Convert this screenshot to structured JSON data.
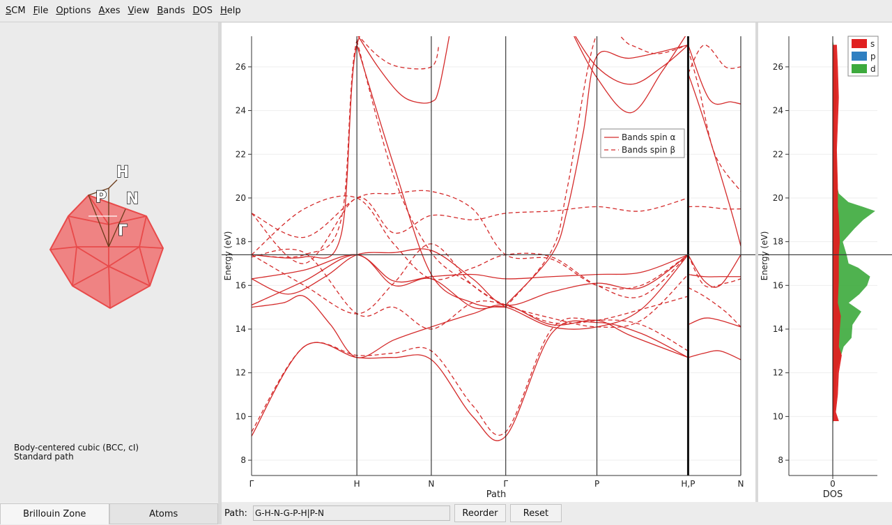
{
  "menu": [
    "SCM",
    "File",
    "Options",
    "Axes",
    "View",
    "Bands",
    "DOS",
    "Help"
  ],
  "brillouin_zone": {
    "points": [
      "H",
      "P",
      "N",
      "Γ"
    ],
    "face_color": "#f07878",
    "edge_color": "#e84a4a"
  },
  "lattice_info": {
    "line1": "Body-centered cubic (BCC, cI)",
    "line2": "Standard path"
  },
  "tabs": [
    {
      "label": "Brillouin Zone",
      "active": true
    },
    {
      "label": "Atoms",
      "active": false
    }
  ],
  "path_bar": {
    "label": "Path:",
    "value": "G-H-N-G-P-H|P-N",
    "reorder_label": "Reorder",
    "reset_label": "Reset"
  },
  "colors": {
    "band": "#d42a2a",
    "fermi": "#333333",
    "dos_s": "#e02020",
    "dos_p": "#2f7fc1",
    "dos_d": "#3daa3d"
  },
  "chart_data": [
    {
      "type": "line",
      "title": "",
      "xlabel": "Path",
      "ylabel": "Energy (eV)",
      "ylim": [
        7.3,
        27.4
      ],
      "yticks": [
        8,
        10,
        12,
        14,
        16,
        18,
        20,
        22,
        24,
        26
      ],
      "fermi_level": 17.4,
      "kpoints": [
        {
          "label": "Γ",
          "x": 0.0
        },
        {
          "label": "H",
          "x": 1.0
        },
        {
          "label": "N",
          "x": 1.707
        },
        {
          "label": "Γ",
          "x": 2.414
        },
        {
          "label": "P",
          "x": 3.28
        },
        {
          "label": "H,P",
          "x": 4.146
        },
        {
          "label": "N",
          "x": 4.646
        }
      ],
      "legend": {
        "placement": "upper-right",
        "entries": [
          "Bands spin α",
          "Bands spin β"
        ]
      },
      "series": [
        {
          "name": "Bands spin α",
          "style": "solid",
          "bands": [
            {
              "x": [
                0,
                0.5,
                1,
                1.35,
                1.707,
                2.1,
                2.414,
                2.85,
                3.28,
                3.7,
                4.146
              ],
              "y": [
                9.1,
                13.2,
                12.7,
                12.7,
                12.6,
                10.0,
                9.1,
                13.8,
                14.3,
                13.8,
                12.7
              ]
            },
            {
              "x": [
                0,
                0.3,
                0.5,
                0.75,
                1,
                1.35,
                1.707,
                2.1,
                2.414,
                2.85,
                3.28,
                3.6,
                4.146
              ],
              "y": [
                15.0,
                15.2,
                15.5,
                14.2,
                12.7,
                13.5,
                14.1,
                14.7,
                15.1,
                14.2,
                14.4,
                13.7,
                12.7
              ]
            },
            {
              "x": [
                0,
                0.5,
                1,
                1.35,
                1.707,
                2.1,
                2.414,
                2.85,
                3.28,
                3.7,
                4.146
              ],
              "y": [
                15.1,
                16.2,
                17.4,
                16.0,
                16.3,
                15.0,
                15.0,
                14.1,
                14.1,
                14.9,
                17.4
              ]
            },
            {
              "x": [
                0,
                0.35,
                0.7,
                1,
                1.35,
                1.707,
                2.1,
                2.414,
                2.85,
                3.28,
                3.7,
                4.146
              ],
              "y": [
                16.3,
                15.6,
                16.4,
                17.4,
                17.5,
                17.6,
                16.3,
                15.1,
                15.7,
                16.1,
                15.9,
                17.4
              ]
            },
            {
              "x": [
                0,
                0.5,
                1,
                1.35,
                1.707,
                2.1,
                2.414,
                2.85,
                3.28,
                3.7,
                4.146
              ],
              "y": [
                16.3,
                16.7,
                17.4,
                16.2,
                16.4,
                16.5,
                16.3,
                16.4,
                16.5,
                16.6,
                17.4
              ]
            },
            {
              "x": [
                0,
                0.5,
                0.85,
                1,
                1.35,
                1.707,
                2.1,
                2.414
              ],
              "y": [
                17.4,
                17.3,
                18.3,
                27.0,
                27.8,
                28.0,
                27.8,
                27.5
              ]
            },
            {
              "x": [
                1,
                1.35,
                1.707,
                2.1,
                2.414
              ],
              "y": [
                27.0,
                21.5,
                16.5,
                15.2,
                15.0
              ]
            },
            {
              "x": [
                1.0,
                1.2,
                1.4,
                1.55,
                1.707,
                1.78,
                1.9
              ],
              "y": [
                27.5,
                26.0,
                24.8,
                24.4,
                24.4,
                25.0,
                28.0
              ]
            },
            {
              "x": [
                2.414,
                2.85,
                3.0,
                3.15,
                3.28,
                3.6,
                4.146
              ],
              "y": [
                15.1,
                17.4,
                19.5,
                23.0,
                26.5,
                26.4,
                27.0
              ]
            },
            {
              "x": [
                3.0,
                3.28,
                3.6,
                3.9,
                4.146
              ],
              "y": [
                28.0,
                26.0,
                25.2,
                26.0,
                27.0
              ]
            },
            {
              "x": [
                3.0,
                3.28,
                3.6,
                3.9,
                4.146
              ],
              "y": [
                28.0,
                25.5,
                23.9,
                25.8,
                27.6
              ]
            },
            {
              "x": [
                4.146,
                4.3,
                4.45,
                4.646
              ],
              "y": [
                12.7,
                12.9,
                13.0,
                12.6
              ]
            },
            {
              "x": [
                4.146,
                4.3,
                4.45,
                4.646
              ],
              "y": [
                14.2,
                14.5,
                14.4,
                14.1
              ]
            },
            {
              "x": [
                4.146,
                4.3,
                4.45,
                4.646
              ],
              "y": [
                16.5,
                16.4,
                16.4,
                16.4
              ]
            },
            {
              "x": [
                4.146,
                4.3,
                4.45,
                4.646
              ],
              "y": [
                17.4,
                16.2,
                16.0,
                17.4
              ]
            },
            {
              "x": [
                4.146,
                4.35,
                4.55,
                4.646
              ],
              "y": [
                27.0,
                24.5,
                24.4,
                24.3
              ]
            },
            {
              "x": [
                4.146,
                4.3,
                4.55,
                4.646
              ],
              "y": [
                25.7,
                23.5,
                19.5,
                17.8
              ]
            }
          ]
        },
        {
          "name": "Bands spin β",
          "style": "dashed",
          "bands": [
            {
              "x": [
                0,
                0.5,
                1,
                1.35,
                1.707,
                2.1,
                2.414,
                2.85,
                3.28,
                3.7,
                4.146
              ],
              "y": [
                9.3,
                13.2,
                12.8,
                12.9,
                13.0,
                10.5,
                9.3,
                14.0,
                14.4,
                14.2,
                13.0
              ]
            },
            {
              "x": [
                0,
                0.5,
                1,
                1.35,
                1.707,
                2.1,
                2.414,
                2.85,
                3.28,
                3.7,
                4.146
              ],
              "y": [
                17.3,
                17.5,
                14.7,
                15.0,
                14.0,
                15.2,
                15.1,
                14.3,
                14.4,
                14.9,
                15.5
              ]
            },
            {
              "x": [
                0,
                0.5,
                1,
                1.35,
                1.707,
                2.1,
                2.414,
                2.85,
                3.28,
                3.7,
                4.146
              ],
              "y": [
                19.3,
                17.0,
                20.0,
                18.4,
                19.2,
                19.0,
                19.3,
                19.4,
                19.6,
                19.4,
                20.0
              ]
            },
            {
              "x": [
                0,
                0.5,
                1,
                1.35,
                1.707,
                2.1,
                2.414,
                2.85,
                3.28,
                3.7,
                4.146
              ],
              "y": [
                19.3,
                18.2,
                20.0,
                20.2,
                20.3,
                19.5,
                17.4,
                17.2,
                16.0,
                16.0,
                17.4
              ]
            },
            {
              "x": [
                0,
                0.5,
                1,
                1.35,
                1.707,
                2.1,
                2.414,
                2.85,
                3.28,
                3.7,
                4.146
              ],
              "y": [
                17.4,
                19.5,
                20.0,
                17.9,
                16.3,
                16.8,
                17.4,
                17.3,
                16.0,
                15.5,
                17.4
              ]
            },
            {
              "x": [
                0,
                0.5,
                1,
                1.35,
                1.707,
                2.1,
                2.414,
                2.85,
                3.28,
                3.7,
                4.146
              ],
              "y": [
                17.4,
                16.0,
                14.7,
                16.1,
                17.9,
                16.0,
                15.1,
                14.5,
                14.1,
                14.4,
                16.5
              ]
            },
            {
              "x": [
                0,
                0.5,
                0.85,
                1,
                1.35,
                1.707,
                2.1
              ],
              "y": [
                17.4,
                17.4,
                19.0,
                27.2,
                27.8,
                28.0,
                27.9
              ]
            },
            {
              "x": [
                1,
                1.35,
                1.707,
                2.1,
                2.414
              ],
              "y": [
                27.2,
                21.0,
                17.5,
                16.0,
                15.0
              ]
            },
            {
              "x": [
                1.0,
                1.2,
                1.4,
                1.707,
                1.78
              ],
              "y": [
                27.5,
                26.5,
                26.0,
                26.0,
                27.0
              ]
            },
            {
              "x": [
                2.414,
                2.85,
                3.0,
                3.28,
                3.6,
                3.85,
                4.146
              ],
              "y": [
                15.0,
                17.6,
                20.5,
                27.5,
                27.0,
                26.6,
                27.0
              ]
            },
            {
              "x": [
                4.146,
                4.3,
                4.5,
                4.646
              ],
              "y": [
                25.7,
                27.0,
                26.0,
                26.0
              ]
            },
            {
              "x": [
                4.146,
                4.3,
                4.5,
                4.646
              ],
              "y": [
                19.6,
                19.6,
                19.5,
                19.5
              ]
            },
            {
              "x": [
                4.146,
                4.3,
                4.5,
                4.646
              ],
              "y": [
                17.4,
                16.0,
                16.1,
                16.3
              ]
            },
            {
              "x": [
                4.146,
                4.3,
                4.5,
                4.646
              ],
              "y": [
                15.9,
                15.5,
                14.8,
                14.1
              ]
            },
            {
              "x": [
                4.146,
                4.25,
                4.4,
                4.646
              ],
              "y": [
                26.8,
                25.0,
                22.0,
                20.3
              ]
            }
          ]
        }
      ]
    },
    {
      "type": "area",
      "title": "",
      "xlabel": "DOS",
      "ylabel": "Energy (eV)",
      "ylim": [
        7.3,
        27.4
      ],
      "yticks": [
        8,
        10,
        12,
        14,
        16,
        18,
        20,
        22,
        24,
        26
      ],
      "xticks": [
        0
      ],
      "fermi_level": 17.4,
      "legend": {
        "placement": "top-right",
        "entries": [
          "s",
          "p",
          "d"
        ]
      },
      "series": [
        {
          "name": "s",
          "energy": [
            9.8,
            10.2,
            11.0,
            12.0,
            12.8,
            13.2,
            14.0,
            14.6,
            15.2,
            16.2,
            17.0,
            17.4,
            18.0,
            19.2,
            19.6,
            20.6,
            22.2,
            24.6,
            26.0,
            27.0
          ],
          "dos": [
            0.6,
            0.3,
            0.5,
            0.6,
            0.9,
            0.6,
            0.7,
            0.8,
            0.5,
            0.6,
            0.6,
            0.6,
            0.7,
            0.6,
            0.5,
            0.5,
            0.4,
            0.6,
            0.5,
            0.4
          ]
        },
        {
          "name": "p",
          "energy": [
            9.8,
            27.0
          ],
          "dos": [
            0.0,
            0.0
          ]
        },
        {
          "name": "d",
          "energy": [
            9.6,
            10.5,
            11.6,
            12.2,
            12.6,
            13.2,
            13.6,
            14.2,
            14.8,
            15.2,
            15.6,
            16.0,
            16.4,
            16.8,
            17.0,
            17.4,
            18.0,
            18.6,
            19.0,
            19.4,
            19.6,
            19.8,
            20.2,
            20.6,
            21.4,
            22.4,
            23.6,
            24.6,
            25.6,
            26.6,
            27.2
          ],
          "dos": [
            0.0,
            0.2,
            0.3,
            0.4,
            0.7,
            1.1,
            1.9,
            2.0,
            2.9,
            1.6,
            2.7,
            3.5,
            3.8,
            2.6,
            1.6,
            1.4,
            1.0,
            2.2,
            3.1,
            4.3,
            3.0,
            1.6,
            0.6,
            0.4,
            0.4,
            0.3,
            0.2,
            0.4,
            0.3,
            0.2,
            0.0
          ]
        }
      ]
    }
  ]
}
